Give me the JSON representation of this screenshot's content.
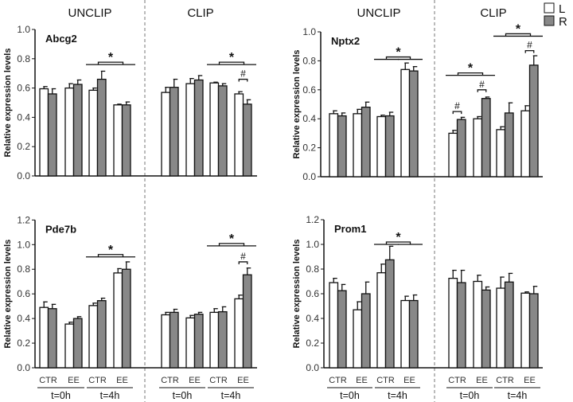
{
  "headers": [
    "UNCLIP",
    "CLIP",
    "UNCLIP",
    "CLIP"
  ],
  "legend": [
    {
      "label": "L",
      "color": "#ffffff"
    },
    {
      "label": "R",
      "color": "#888888"
    }
  ],
  "colors": {
    "L": "#ffffff",
    "R": "#888888",
    "stroke": "#111111"
  },
  "chart_data": [
    {
      "type": "bar",
      "title": "Abcg2",
      "ylabel": "Relative expression levels",
      "ylim": [
        0,
        1.0
      ],
      "yticks": [
        "0.0",
        "0.2",
        "0.4",
        "0.6",
        "0.8",
        "1.0"
      ],
      "categories": [
        "UNCLIP CTR t=0h",
        "UNCLIP EE t=0h",
        "UNCLIP CTR t=4h",
        "UNCLIP EE t=4h",
        "CLIP CTR t=0h",
        "CLIP EE t=0h",
        "CLIP CTR t=4h",
        "CLIP EE t=4h"
      ],
      "series": [
        {
          "name": "L",
          "values": [
            0.595,
            0.6,
            0.585,
            0.485,
            0.57,
            0.63,
            0.635,
            0.56
          ],
          "errors": [
            0.015,
            0.03,
            0.015,
            0.005,
            0.035,
            0.035,
            0.005,
            0.015
          ]
        },
        {
          "name": "R",
          "values": [
            0.56,
            0.625,
            0.66,
            0.485,
            0.605,
            0.655,
            0.615,
            0.49
          ],
          "errors": [
            0.035,
            0.03,
            0.055,
            0.02,
            0.055,
            0.03,
            0.015,
            0.03
          ]
        }
      ],
      "annotations": [
        {
          "mark": "*",
          "pairs": [
            2,
            3
          ],
          "level": 0.76
        },
        {
          "mark": "*",
          "pairs": [
            6,
            7
          ],
          "level": 0.76
        },
        {
          "mark": "#",
          "pair": 7,
          "level": 0.66
        }
      ]
    },
    {
      "type": "bar",
      "title": "Nptx2",
      "ylabel": "Relative expression levels",
      "ylim": [
        0,
        1.0
      ],
      "yticks": [
        "0.0",
        "0.2",
        "0.4",
        "0.6",
        "0.8",
        "1.0"
      ],
      "categories": [
        "UNCLIP CTR t=0h",
        "UNCLIP EE t=0h",
        "UNCLIP CTR t=4h",
        "UNCLIP EE t=4h",
        "CLIP CTR t=0h",
        "CLIP EE t=0h",
        "CLIP CTR t=4h",
        "CLIP EE t=4h"
      ],
      "series": [
        {
          "name": "L",
          "values": [
            0.435,
            0.435,
            0.415,
            0.74,
            0.3,
            0.4,
            0.325,
            0.455
          ],
          "errors": [
            0.02,
            0.03,
            0.01,
            0.045,
            0.02,
            0.015,
            0.02,
            0.035
          ]
        },
        {
          "name": "R",
          "values": [
            0.42,
            0.48,
            0.42,
            0.73,
            0.395,
            0.54,
            0.44,
            0.77
          ],
          "errors": [
            0.02,
            0.035,
            0.025,
            0.03,
            0.015,
            0.01,
            0.07,
            0.065
          ]
        }
      ],
      "annotations": [
        {
          "mark": "*",
          "pairs": [
            2,
            3
          ],
          "level": 0.81
        },
        {
          "mark": "*",
          "pairs": [
            4,
            5
          ],
          "level": 0.7
        },
        {
          "mark": "#",
          "pair": 4,
          "level": 0.45
        },
        {
          "mark": "#",
          "pair": 5,
          "level": 0.6
        },
        {
          "mark": "*",
          "pairs": [
            6,
            7
          ],
          "level": 0.97
        },
        {
          "mark": "#",
          "pair": 7,
          "level": 0.87
        }
      ]
    },
    {
      "type": "bar",
      "title": "Pde7b",
      "ylabel": "Relative expression levels",
      "ylim": [
        0,
        1.2
      ],
      "yticks": [
        "0.0",
        "0.2",
        "0.4",
        "0.6",
        "0.8",
        "1.0",
        "1.2"
      ],
      "categories": [
        "UNCLIP CTR t=0h",
        "UNCLIP EE t=0h",
        "UNCLIP CTR t=4h",
        "UNCLIP EE t=4h",
        "CLIP CTR t=0h",
        "CLIP EE t=0h",
        "CLIP CTR t=4h",
        "CLIP EE t=4h"
      ],
      "series": [
        {
          "name": "L",
          "values": [
            0.49,
            0.355,
            0.505,
            0.77,
            0.43,
            0.405,
            0.45,
            0.56
          ],
          "errors": [
            0.045,
            0.015,
            0.02,
            0.035,
            0.02,
            0.02,
            0.03,
            0.03
          ]
        },
        {
          "name": "R",
          "values": [
            0.48,
            0.4,
            0.545,
            0.8,
            0.45,
            0.435,
            0.455,
            0.755
          ],
          "errors": [
            0.035,
            0.015,
            0.02,
            0.06,
            0.025,
            0.015,
            0.04,
            0.055
          ]
        }
      ],
      "annotations": [
        {
          "mark": "*",
          "pairs": [
            2,
            3
          ],
          "level": 0.9
        },
        {
          "mark": "*",
          "pairs": [
            6,
            7
          ],
          "level": 0.99
        },
        {
          "mark": "#",
          "pair": 7,
          "level": 0.86
        }
      ]
    },
    {
      "type": "bar",
      "title": "Prom1",
      "ylabel": "Relative expression levels",
      "ylim": [
        0,
        1.2
      ],
      "yticks": [
        "0.0",
        "0.2",
        "0.4",
        "0.6",
        "0.8",
        "1.0",
        "1.2"
      ],
      "categories": [
        "UNCLIP CTR t=0h",
        "UNCLIP EE t=0h",
        "UNCLIP CTR t=4h",
        "UNCLIP EE t=4h",
        "CLIP CTR t=0h",
        "CLIP EE t=0h",
        "CLIP CTR t=4h",
        "CLIP EE t=4h"
      ],
      "series": [
        {
          "name": "L",
          "values": [
            0.69,
            0.47,
            0.77,
            0.545,
            0.725,
            0.7,
            0.645,
            0.605
          ],
          "errors": [
            0.035,
            0.065,
            0.07,
            0.035,
            0.065,
            0.05,
            0.09,
            0.01
          ]
        },
        {
          "name": "R",
          "values": [
            0.625,
            0.6,
            0.875,
            0.545,
            0.69,
            0.63,
            0.695,
            0.6
          ],
          "errors": [
            0.05,
            0.095,
            0.11,
            0.045,
            0.1,
            0.025,
            0.07,
            0.06
          ]
        }
      ],
      "annotations": [
        {
          "mark": "*",
          "pairs": [
            2,
            3
          ],
          "level": 1.0
        }
      ]
    }
  ],
  "xaxis": {
    "conditions": [
      "CTR",
      "EE"
    ],
    "times": [
      "t=0h",
      "t=4h"
    ]
  }
}
